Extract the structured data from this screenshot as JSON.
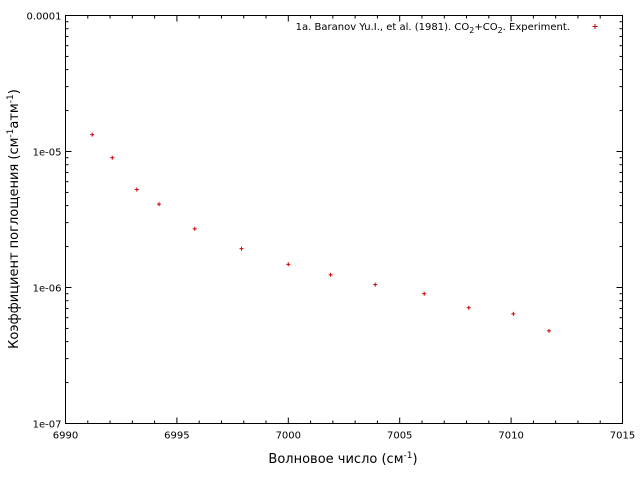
{
  "chart_data": {
    "type": "scatter",
    "xlabel_text": "Волновое число (см",
    "xlabel_sup": "-1",
    "xlabel_close": ")",
    "ylabel_text": "Коэффициент поглощения (см",
    "ylabel_sup1": "-1",
    "ylabel_mid": "атм",
    "ylabel_sup2": "-1",
    "ylabel_close": ")",
    "xlim": [
      6990,
      7015
    ],
    "ylim": [
      1e-07,
      0.0001
    ],
    "yscale": "log",
    "grid": false,
    "legend_position": "top-right",
    "x_ticks": [
      {
        "value": 6990,
        "label": "6990"
      },
      {
        "value": 6995,
        "label": "6995"
      },
      {
        "value": 7000,
        "label": "7000"
      },
      {
        "value": 7005,
        "label": "7005"
      },
      {
        "value": 7010,
        "label": "7010"
      },
      {
        "value": 7015,
        "label": "7015"
      }
    ],
    "y_ticks": [
      {
        "value": 1e-07,
        "label": "1e-07"
      },
      {
        "value": 1e-06,
        "label": "1e-06"
      },
      {
        "value": 1e-05,
        "label": "1e-05"
      },
      {
        "value": 0.0001,
        "label": "0.0001"
      }
    ],
    "legend": {
      "part1": "1a. Baranov Yu.I., et al. (1981). CO",
      "sub1": "2",
      "part2": "+CO",
      "sub2": "2",
      "part3": ". Experiment."
    },
    "series": [
      {
        "color": "#cc0000",
        "marker": "+",
        "x": [
          6991.2,
          6992.1,
          6993.2,
          6994.2,
          6995.8,
          6997.9,
          7000.0,
          7001.9,
          7003.9,
          7006.1,
          7008.1,
          7010.1,
          7011.7
        ],
        "y": [
          1.33e-05,
          9e-06,
          5.25e-06,
          4.1e-06,
          2.7e-06,
          1.93e-06,
          1.48e-06,
          1.24e-06,
          1.05e-06,
          9e-07,
          7.1e-07,
          6.4e-07,
          4.8e-07
        ]
      }
    ]
  }
}
